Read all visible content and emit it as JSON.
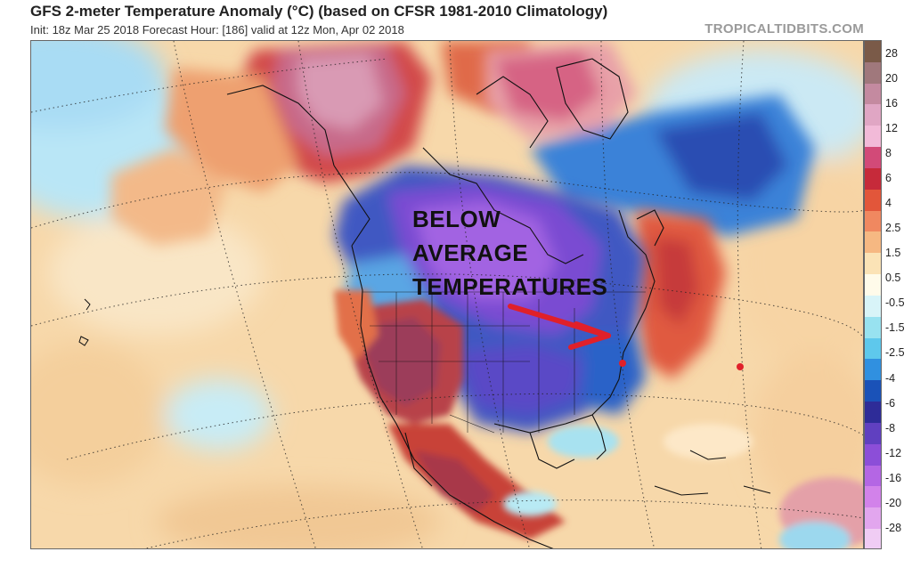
{
  "header": {
    "title": "GFS 2-meter Temperature Anomaly (°C) (based on CFSR 1981-2010 Climatology)",
    "subtitle": "Init: 18z Mar 25 2018   Forecast Hour: [186]   valid at 12z Mon, Apr 02 2018",
    "watermark": "TROPICALTIDBITS.COM"
  },
  "annotation": {
    "line1": "BELOW",
    "line2": "AVERAGE",
    "line3": "TEMPERATURES",
    "arrow_color": "#e0202a"
  },
  "colorbar": {
    "labels": [
      "28",
      "20",
      "16",
      "12",
      "8",
      "6",
      "4",
      "2.5",
      "1.5",
      "0.5",
      "-0.5",
      "-1.5",
      "-2.5",
      "-4",
      "-6",
      "-8",
      "-12",
      "-16",
      "-20",
      "-28"
    ],
    "colors": [
      "#7a5a48",
      "#a0787c",
      "#c48aa0",
      "#e0a6c4",
      "#f2bad8",
      "#d24a78",
      "#c62a3a",
      "#e2563a",
      "#f08860",
      "#f6b882",
      "#fbe3b6",
      "#fffbea",
      "#d8f4f8",
      "#98e2f0",
      "#5ec8ec",
      "#3090e0",
      "#1a52b8",
      "#2e2c98",
      "#6040c0",
      "#8c4ed8",
      "#b466e4",
      "#d282ea",
      "#e2a6ee",
      "#f0ccf4"
    ]
  }
}
